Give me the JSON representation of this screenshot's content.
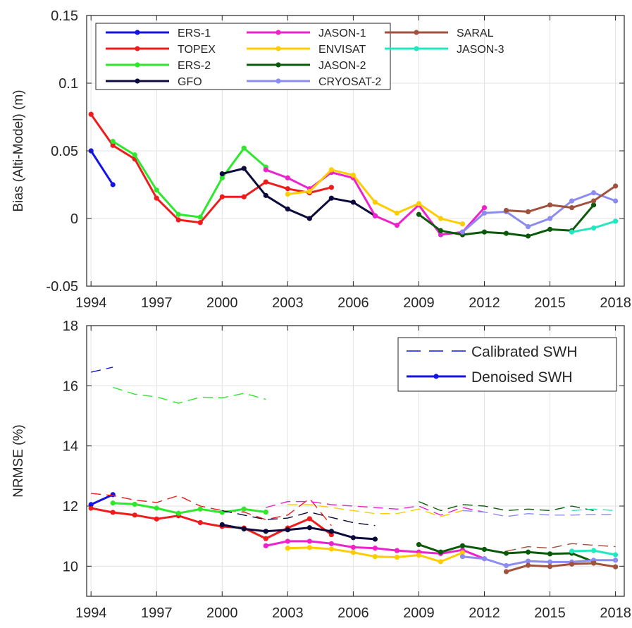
{
  "colors": {
    "ERS-1": "#1414e6",
    "TOPEX": "#ee1c1c",
    "ERS-2": "#2ee82e",
    "GFO": "#0a0a3c",
    "JASON-1": "#ee22cc",
    "ENVISAT": "#ffcc00",
    "JASON-2": "#0a5a0a",
    "CRYOSAT-2": "#8c8cf0",
    "SARAL": "#a0523c",
    "JASON-3": "#22e8c0"
  },
  "chart_data": [
    {
      "type": "line",
      "ylabel": "Bias (Alti-Model) (m)",
      "xlabel": "",
      "xlim": [
        1993.8,
        2018.4
      ],
      "ylim": [
        -0.05,
        0.15
      ],
      "xticks": [
        1994,
        1997,
        2000,
        2003,
        2006,
        2009,
        2012,
        2015,
        2018
      ],
      "yticks": [
        -0.05,
        0,
        0.05,
        0.1,
        0.15
      ],
      "ytick_labels": [
        "-0.05",
        "0",
        "0.05",
        "0.1",
        "0.15"
      ],
      "grid": true,
      "legend_placement": "top-left",
      "legend": [
        "ERS-1",
        "TOPEX",
        "ERS-2",
        "GFO",
        "JASON-1",
        "ENVISAT",
        "JASON-2",
        "CRYOSAT-2",
        "SARAL",
        "JASON-3"
      ],
      "series": [
        {
          "name": "ERS-1",
          "x": [
            1994,
            1995
          ],
          "y": [
            0.05,
            0.025
          ]
        },
        {
          "name": "TOPEX",
          "x": [
            1994,
            1995,
            1996,
            1997,
            1998,
            1999,
            2000,
            2001,
            2002,
            2003,
            2004,
            2005
          ],
          "y": [
            0.077,
            0.054,
            0.044,
            0.015,
            -0.001,
            -0.003,
            0.016,
            0.016,
            0.027,
            0.022,
            0.019,
            0.023
          ]
        },
        {
          "name": "ERS-2",
          "x": [
            1995,
            1996,
            1997,
            1998,
            1999,
            2000,
            2001,
            2002
          ],
          "y": [
            0.057,
            0.047,
            0.021,
            0.003,
            0.001,
            0.03,
            0.052,
            0.038
          ]
        },
        {
          "name": "GFO",
          "x": [
            2000,
            2001,
            2002,
            2003,
            2004,
            2005,
            2006,
            2007
          ],
          "y": [
            0.033,
            0.037,
            0.017,
            0.007,
            0.0,
            0.015,
            0.012,
            0.002
          ]
        },
        {
          "name": "JASON-1",
          "x": [
            2002,
            2003,
            2004,
            2005,
            2006,
            2007,
            2008,
            2009,
            2010,
            2011,
            2012
          ],
          "y": [
            0.036,
            0.03,
            0.022,
            0.034,
            0.03,
            0.002,
            -0.005,
            0.01,
            -0.012,
            -0.01,
            0.008
          ]
        },
        {
          "name": "ENVISAT",
          "x": [
            2003,
            2004,
            2005,
            2006,
            2007,
            2008,
            2009,
            2010,
            2011
          ],
          "y": [
            0.018,
            0.02,
            0.036,
            0.032,
            0.012,
            0.004,
            0.011,
            0.0,
            -0.004
          ]
        },
        {
          "name": "JASON-2",
          "x": [
            2009,
            2010,
            2011,
            2012,
            2013,
            2014,
            2015,
            2016,
            2017
          ],
          "y": [
            0.003,
            -0.009,
            -0.012,
            -0.01,
            -0.011,
            -0.013,
            -0.008,
            -0.009,
            0.01
          ]
        },
        {
          "name": "CRYOSAT-2",
          "x": [
            2011,
            2012,
            2013,
            2014,
            2015,
            2016,
            2017,
            2018
          ],
          "y": [
            -0.01,
            0.004,
            0.005,
            -0.006,
            0.0,
            0.013,
            0.019,
            0.013
          ]
        },
        {
          "name": "SARAL",
          "x": [
            2013,
            2014,
            2015,
            2016,
            2017,
            2018
          ],
          "y": [
            0.006,
            0.005,
            0.01,
            0.008,
            0.013,
            0.024
          ]
        },
        {
          "name": "JASON-3",
          "x": [
            2016,
            2017,
            2018
          ],
          "y": [
            -0.01,
            -0.007,
            -0.002
          ]
        }
      ]
    },
    {
      "type": "line",
      "ylabel": "NRMSE (%)",
      "xlabel": "",
      "xlim": [
        1993.8,
        2018.4
      ],
      "ylim": [
        9,
        18
      ],
      "xticks": [
        1994,
        1997,
        2000,
        2003,
        2006,
        2009,
        2012,
        2015,
        2018
      ],
      "yticks": [
        10,
        12,
        14,
        16,
        18
      ],
      "ytick_labels": [
        "10",
        "12",
        "14",
        "16",
        "18"
      ],
      "grid": true,
      "legend_placement": "top-right",
      "legend": [
        "Calibrated SWH",
        "Denoised SWH"
      ],
      "series": [
        {
          "name": "ERS-1",
          "style": "dashed",
          "x": [
            1994,
            1995
          ],
          "y": [
            16.45,
            16.62
          ]
        },
        {
          "name": "ERS-1",
          "style": "solid",
          "x": [
            1994,
            1995
          ],
          "y": [
            12.05,
            12.38
          ]
        },
        {
          "name": "TOPEX",
          "style": "dashed",
          "x": [
            1994,
            1995,
            1996,
            1997,
            1998,
            1999,
            2000,
            2001,
            2002,
            2003,
            2004,
            2005
          ],
          "y": [
            12.42,
            12.35,
            12.2,
            12.12,
            12.35,
            12.0,
            11.85,
            11.8,
            11.55,
            11.7,
            12.25,
            11.35
          ]
        },
        {
          "name": "TOPEX",
          "style": "solid",
          "x": [
            1994,
            1995,
            1996,
            1997,
            1998,
            1999,
            2000,
            2001,
            2002,
            2003,
            2004,
            2005
          ],
          "y": [
            11.93,
            11.79,
            11.7,
            11.57,
            11.68,
            11.45,
            11.32,
            11.27,
            10.92,
            11.27,
            11.58,
            11.05
          ]
        },
        {
          "name": "ERS-2",
          "style": "dashed",
          "x": [
            1995,
            1996,
            1997,
            1998,
            1999,
            2000,
            2001,
            2002
          ],
          "y": [
            15.95,
            15.72,
            15.63,
            15.42,
            15.62,
            15.6,
            15.75,
            15.55
          ]
        },
        {
          "name": "ERS-2",
          "style": "solid",
          "x": [
            1995,
            1996,
            1997,
            1998,
            1999,
            2000,
            2001,
            2002
          ],
          "y": [
            12.1,
            12.06,
            11.93,
            11.76,
            11.9,
            11.79,
            11.9,
            11.8
          ]
        },
        {
          "name": "GFO",
          "style": "dashed",
          "x": [
            2000,
            2001,
            2002,
            2003,
            2004,
            2005,
            2006,
            2007
          ],
          "y": [
            11.85,
            11.7,
            11.55,
            11.6,
            11.8,
            11.62,
            11.45,
            11.35
          ]
        },
        {
          "name": "GFO",
          "style": "solid",
          "x": [
            2000,
            2001,
            2002,
            2003,
            2004,
            2005,
            2006,
            2007
          ],
          "y": [
            11.38,
            11.24,
            11.16,
            11.21,
            11.28,
            11.16,
            10.95,
            10.9
          ]
        },
        {
          "name": "JASON-1",
          "style": "dashed",
          "x": [
            2002,
            2003,
            2004,
            2005,
            2006,
            2007,
            2008,
            2009,
            2010,
            2011,
            2012
          ],
          "y": [
            11.95,
            12.15,
            12.15,
            12.05,
            12.0,
            11.95,
            11.9,
            12.0,
            11.7,
            11.95,
            11.8
          ]
        },
        {
          "name": "JASON-1",
          "style": "solid",
          "x": [
            2002,
            2003,
            2004,
            2005,
            2006,
            2007,
            2008,
            2009,
            2010,
            2011,
            2012
          ],
          "y": [
            10.68,
            10.83,
            10.83,
            10.75,
            10.63,
            10.6,
            10.52,
            10.47,
            10.42,
            10.54,
            10.25
          ]
        },
        {
          "name": "ENVISAT",
          "style": "dashed",
          "x": [
            2003,
            2004,
            2005,
            2006,
            2007,
            2008,
            2009,
            2010,
            2011
          ],
          "y": [
            12.05,
            12.05,
            11.95,
            11.85,
            11.75,
            11.75,
            11.9,
            11.65,
            11.85
          ]
        },
        {
          "name": "ENVISAT",
          "style": "solid",
          "x": [
            2003,
            2004,
            2005,
            2006,
            2007,
            2008,
            2009,
            2010,
            2011
          ],
          "y": [
            10.6,
            10.62,
            10.57,
            10.46,
            10.32,
            10.3,
            10.37,
            10.15,
            10.45
          ]
        },
        {
          "name": "JASON-2",
          "style": "dashed",
          "x": [
            2009,
            2010,
            2011,
            2012,
            2013,
            2014,
            2015,
            2016,
            2017
          ],
          "y": [
            12.15,
            11.85,
            12.05,
            12.0,
            11.85,
            11.9,
            11.85,
            12.0,
            11.85
          ]
        },
        {
          "name": "JASON-2",
          "style": "solid",
          "x": [
            2009,
            2010,
            2011,
            2012,
            2013,
            2014,
            2015,
            2016,
            2017
          ],
          "y": [
            10.72,
            10.47,
            10.68,
            10.56,
            10.43,
            10.47,
            10.41,
            10.43,
            10.15
          ]
        },
        {
          "name": "CRYOSAT-2",
          "style": "dashed",
          "x": [
            2011,
            2012,
            2013,
            2014,
            2015,
            2016,
            2017,
            2018
          ],
          "y": [
            11.85,
            11.8,
            11.65,
            11.75,
            11.7,
            11.7,
            11.72,
            11.72
          ]
        },
        {
          "name": "CRYOSAT-2",
          "style": "solid",
          "x": [
            2011,
            2012,
            2013,
            2014,
            2015,
            2016,
            2017,
            2018
          ],
          "y": [
            10.32,
            10.25,
            10.02,
            10.17,
            10.14,
            10.14,
            10.2,
            10.2
          ]
        },
        {
          "name": "SARAL",
          "style": "dashed",
          "x": [
            2013,
            2014,
            2015,
            2016,
            2017,
            2018
          ],
          "y": [
            10.5,
            10.65,
            10.6,
            10.75,
            10.7,
            10.65
          ]
        },
        {
          "name": "SARAL",
          "style": "solid",
          "x": [
            2013,
            2014,
            2015,
            2016,
            2017,
            2018
          ],
          "y": [
            9.82,
            10.03,
            9.99,
            10.07,
            10.1,
            9.98
          ]
        },
        {
          "name": "JASON-3",
          "style": "dashed",
          "x": [
            2016,
            2017,
            2018
          ],
          "y": [
            11.85,
            11.9,
            11.85
          ]
        },
        {
          "name": "JASON-3",
          "style": "solid",
          "x": [
            2016,
            2017,
            2018
          ],
          "y": [
            10.5,
            10.52,
            10.38
          ]
        }
      ]
    }
  ]
}
